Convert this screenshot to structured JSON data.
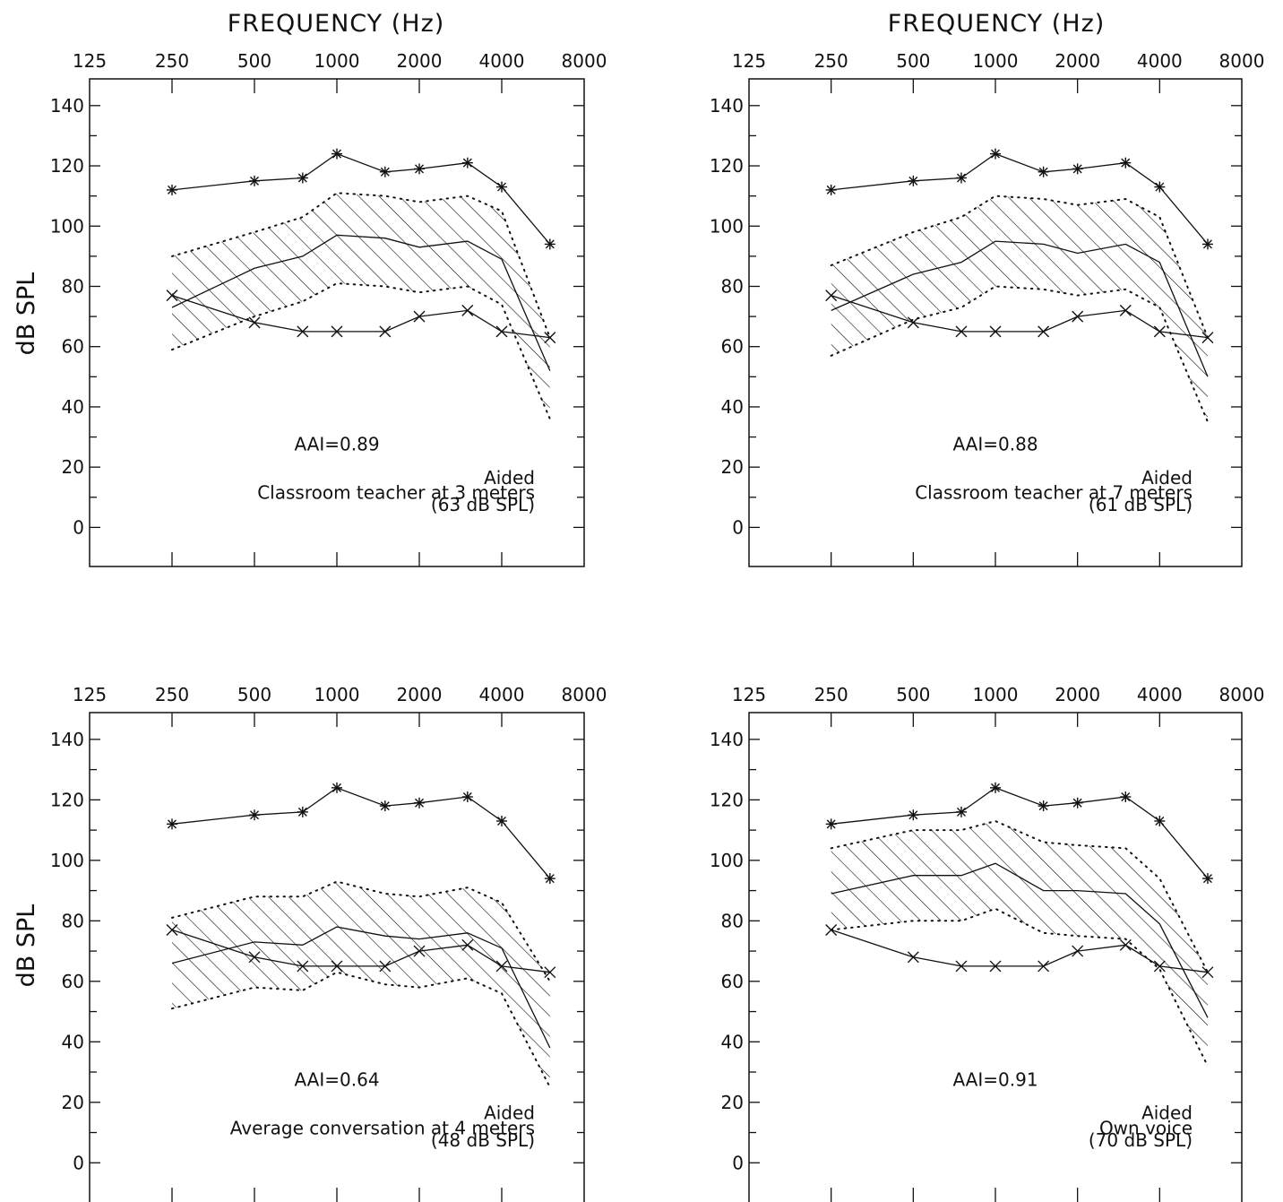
{
  "figure_labels": {
    "top_left_title": "FREQUENCY (Hz)",
    "top_right_title": "FREQUENCY (Hz)",
    "left_top_ylabel": "dB SPL",
    "left_bottom_ylabel": "dB SPL"
  },
  "chart_data": [
    {
      "type": "line",
      "title": "FREQUENCY (Hz)",
      "ylabel": "dB SPL",
      "x_tick_labels": [
        "125",
        "250",
        "500",
        "1000",
        "2000",
        "4000",
        "8000"
      ],
      "y_tick_labels": [
        "140",
        "120",
        "100",
        "80",
        "60",
        "40",
        "20",
        "0"
      ],
      "ylim": [
        -10,
        145
      ],
      "x_scale": "log",
      "x": [
        250,
        500,
        750,
        1000,
        1500,
        2000,
        3000,
        4000,
        6000
      ],
      "aai_label": "AAI=0.89",
      "note_lines": [
        "Aided",
        "Classroom teacher at 3 meters",
        "(63 dB SPL)"
      ],
      "series": [
        {
          "role": "upper_star",
          "values": [
            112,
            115,
            116,
            124,
            118,
            119,
            121,
            113,
            94
          ]
        },
        {
          "role": "lower_cross",
          "values": [
            77,
            68,
            65,
            65,
            65,
            70,
            72,
            65,
            63
          ]
        },
        {
          "role": "middle",
          "values": [
            73,
            86,
            90,
            97,
            96,
            93,
            95,
            89,
            52
          ]
        },
        {
          "role": "band_top",
          "values": [
            90,
            98,
            103,
            111,
            110,
            108,
            110,
            105,
            63
          ]
        },
        {
          "role": "band_bottom",
          "values": [
            59,
            70,
            75,
            81,
            80,
            78,
            80,
            74,
            36
          ]
        }
      ]
    },
    {
      "type": "line",
      "title": "FREQUENCY (Hz)",
      "ylabel": "",
      "x_tick_labels": [
        "125",
        "250",
        "500",
        "1000",
        "2000",
        "4000",
        "8000"
      ],
      "y_tick_labels": [
        "140",
        "120",
        "100",
        "80",
        "60",
        "40",
        "20",
        "0"
      ],
      "ylim": [
        -10,
        145
      ],
      "x_scale": "log",
      "x": [
        250,
        500,
        750,
        1000,
        1500,
        2000,
        3000,
        4000,
        6000
      ],
      "aai_label": "AAI=0.88",
      "note_lines": [
        "Aided",
        "Classroom teacher at 7 meters",
        "(61 dB SPL)"
      ],
      "series": [
        {
          "role": "upper_star",
          "values": [
            112,
            115,
            116,
            124,
            118,
            119,
            121,
            113,
            94
          ]
        },
        {
          "role": "lower_cross",
          "values": [
            77,
            68,
            65,
            65,
            65,
            70,
            72,
            65,
            63
          ]
        },
        {
          "role": "middle",
          "values": [
            72,
            84,
            88,
            95,
            94,
            91,
            94,
            88,
            50
          ]
        },
        {
          "role": "band_top",
          "values": [
            87,
            98,
            103,
            110,
            109,
            107,
            109,
            103,
            63
          ]
        },
        {
          "role": "band_bottom",
          "values": [
            57,
            69,
            73,
            80,
            79,
            77,
            79,
            73,
            35
          ]
        }
      ]
    },
    {
      "type": "line",
      "title": "",
      "ylabel": "dB SPL",
      "x_tick_labels": [
        "125",
        "250",
        "500",
        "1000",
        "2000",
        "4000",
        "8000"
      ],
      "y_tick_labels": [
        "140",
        "120",
        "100",
        "80",
        "60",
        "40",
        "20",
        "0"
      ],
      "ylim": [
        -10,
        145
      ],
      "x_scale": "log",
      "x": [
        250,
        500,
        750,
        1000,
        1500,
        2000,
        3000,
        4000,
        6000
      ],
      "aai_label": "AAI=0.64",
      "note_lines": [
        "Aided",
        "Average conversation at 4 meters",
        "(48 dB SPL)"
      ],
      "series": [
        {
          "role": "upper_star",
          "values": [
            112,
            115,
            116,
            124,
            118,
            119,
            121,
            113,
            94
          ]
        },
        {
          "role": "lower_cross",
          "values": [
            77,
            68,
            65,
            65,
            65,
            70,
            72,
            65,
            63
          ]
        },
        {
          "role": "middle",
          "values": [
            66,
            73,
            72,
            78,
            75,
            74,
            76,
            71,
            38
          ]
        },
        {
          "role": "band_top",
          "values": [
            81,
            88,
            88,
            93,
            89,
            88,
            91,
            86,
            60
          ]
        },
        {
          "role": "band_bottom",
          "values": [
            51,
            58,
            57,
            63,
            59,
            58,
            61,
            56,
            25
          ]
        }
      ]
    },
    {
      "type": "line",
      "title": "",
      "ylabel": "",
      "x_tick_labels": [
        "125",
        "250",
        "500",
        "1000",
        "2000",
        "4000",
        "8000"
      ],
      "y_tick_labels": [
        "140",
        "120",
        "100",
        "80",
        "60",
        "40",
        "20",
        "0"
      ],
      "ylim": [
        -10,
        145
      ],
      "x_scale": "log",
      "x": [
        250,
        500,
        750,
        1000,
        1500,
        2000,
        3000,
        4000,
        6000
      ],
      "aai_label": "AAI=0.91",
      "note_lines": [
        "Aided",
        "Own voice",
        "(70 dB SPL)"
      ],
      "series": [
        {
          "role": "upper_star",
          "values": [
            112,
            115,
            116,
            124,
            118,
            119,
            121,
            113,
            94
          ]
        },
        {
          "role": "lower_cross",
          "values": [
            77,
            68,
            65,
            65,
            65,
            70,
            72,
            65,
            63
          ]
        },
        {
          "role": "middle",
          "values": [
            89,
            95,
            95,
            99,
            90,
            90,
            89,
            79,
            48
          ]
        },
        {
          "role": "band_top",
          "values": [
            104,
            110,
            110,
            113,
            106,
            105,
            104,
            94,
            63
          ]
        },
        {
          "role": "band_bottom",
          "values": [
            77,
            80,
            80,
            84,
            76,
            75,
            74,
            64,
            32
          ]
        }
      ]
    }
  ]
}
